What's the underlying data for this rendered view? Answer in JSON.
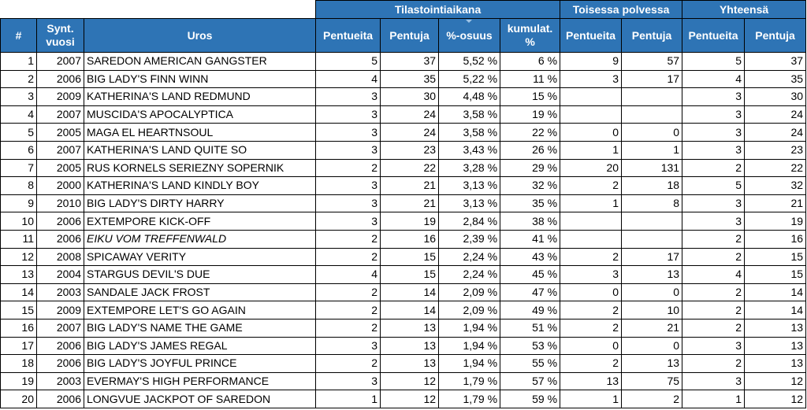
{
  "group_headers": {
    "stat": "Tilastointiaikana",
    "second": "Toisessa polvessa",
    "total": "Yhteensä"
  },
  "columns": {
    "rank": "#",
    "year_line1": "Synt.",
    "year_line2": "vuosi",
    "sire": "Uros",
    "litters": "Pentueita",
    "pups": "Pentuja",
    "share": "%-osuus",
    "cum_line1": "kumulat.",
    "cum_line2": "%",
    "second_litters": "Pentueita",
    "second_pups": "Pentuja",
    "total_litters": "Pentueita",
    "total_pups": "Pentuja"
  },
  "rows": [
    {
      "rank": "1",
      "year": "2007",
      "name": "SAREDON AMERICAN GANGSTER",
      "litters": "5",
      "pups": "37",
      "share": "5,52 %",
      "cum": "6 %",
      "s_litters": "9",
      "s_pups": "57",
      "t_litters": "5",
      "t_pups": "37"
    },
    {
      "rank": "2",
      "year": "2006",
      "name": "BIG LADY'S FINN WINN",
      "litters": "4",
      "pups": "35",
      "share": "5,22 %",
      "cum": "11 %",
      "s_litters": "3",
      "s_pups": "17",
      "t_litters": "4",
      "t_pups": "35"
    },
    {
      "rank": "3",
      "year": "2009",
      "name": "KATHERINA'S LAND REDMUND",
      "litters": "3",
      "pups": "30",
      "share": "4,48 %",
      "cum": "15 %",
      "s_litters": "",
      "s_pups": "",
      "t_litters": "3",
      "t_pups": "30"
    },
    {
      "rank": "4",
      "year": "2007",
      "name": "MUSCIDA'S APOCALYPTICA",
      "litters": "3",
      "pups": "24",
      "share": "3,58 %",
      "cum": "19 %",
      "s_litters": "",
      "s_pups": "",
      "t_litters": "3",
      "t_pups": "24"
    },
    {
      "rank": "5",
      "year": "2005",
      "name": "MAGA EL HEARTNSOUL",
      "litters": "3",
      "pups": "24",
      "share": "3,58 %",
      "cum": "22 %",
      "s_litters": "0",
      "s_pups": "0",
      "t_litters": "3",
      "t_pups": "24"
    },
    {
      "rank": "6",
      "year": "2007",
      "name": "KATHERINA'S LAND QUITE SO",
      "litters": "3",
      "pups": "23",
      "share": "3,43 %",
      "cum": "26 %",
      "s_litters": "1",
      "s_pups": "1",
      "t_litters": "3",
      "t_pups": "23"
    },
    {
      "rank": "7",
      "year": "2005",
      "name": "RUS KORNELS SERIEZNY SOPERNIK",
      "litters": "2",
      "pups": "22",
      "share": "3,28 %",
      "cum": "29 %",
      "s_litters": "20",
      "s_pups": "131",
      "t_litters": "2",
      "t_pups": "22"
    },
    {
      "rank": "8",
      "year": "2000",
      "name": "KATHERINA'S LAND KINDLY BOY",
      "litters": "3",
      "pups": "21",
      "share": "3,13 %",
      "cum": "32 %",
      "s_litters": "2",
      "s_pups": "18",
      "t_litters": "5",
      "t_pups": "32"
    },
    {
      "rank": "9",
      "year": "2010",
      "name": "BIG LADY'S DIRTY HARRY",
      "litters": "3",
      "pups": "21",
      "share": "3,13 %",
      "cum": "35 %",
      "s_litters": "1",
      "s_pups": "8",
      "t_litters": "3",
      "t_pups": "21"
    },
    {
      "rank": "10",
      "year": "2006",
      "name": "EXTEMPORE KICK-OFF",
      "litters": "3",
      "pups": "19",
      "share": "2,84 %",
      "cum": "38 %",
      "s_litters": "",
      "s_pups": "",
      "t_litters": "3",
      "t_pups": "19"
    },
    {
      "rank": "11",
      "year": "2006",
      "name": "EIKU VOM TREFFENWALD",
      "italic": true,
      "litters": "2",
      "pups": "16",
      "share": "2,39 %",
      "cum": "41 %",
      "s_litters": "",
      "s_pups": "",
      "t_litters": "2",
      "t_pups": "16"
    },
    {
      "rank": "12",
      "year": "2008",
      "name": "SPICAWAY VERITY",
      "litters": "2",
      "pups": "15",
      "share": "2,24 %",
      "cum": "43 %",
      "s_litters": "2",
      "s_pups": "17",
      "t_litters": "2",
      "t_pups": "15"
    },
    {
      "rank": "13",
      "year": "2004",
      "name": "STARGUS DEVIL'S DUE",
      "litters": "4",
      "pups": "15",
      "share": "2,24 %",
      "cum": "45 %",
      "s_litters": "3",
      "s_pups": "13",
      "t_litters": "4",
      "t_pups": "15"
    },
    {
      "rank": "14",
      "year": "2003",
      "name": "SANDALE JACK FROST",
      "litters": "2",
      "pups": "14",
      "share": "2,09 %",
      "cum": "47 %",
      "s_litters": "0",
      "s_pups": "0",
      "t_litters": "2",
      "t_pups": "14"
    },
    {
      "rank": "15",
      "year": "2009",
      "name": "EXTEMPORE LET'S GO AGAIN",
      "litters": "2",
      "pups": "14",
      "share": "2,09 %",
      "cum": "49 %",
      "s_litters": "2",
      "s_pups": "10",
      "t_litters": "2",
      "t_pups": "14"
    },
    {
      "rank": "16",
      "year": "2007",
      "name": "BIG LADY'S NAME THE GAME",
      "litters": "2",
      "pups": "13",
      "share": "1,94 %",
      "cum": "51 %",
      "s_litters": "2",
      "s_pups": "21",
      "t_litters": "2",
      "t_pups": "13"
    },
    {
      "rank": "17",
      "year": "2006",
      "name": "BIG LADY'S JAMES REGAL",
      "litters": "3",
      "pups": "13",
      "share": "1,94 %",
      "cum": "53 %",
      "s_litters": "0",
      "s_pups": "0",
      "t_litters": "3",
      "t_pups": "13"
    },
    {
      "rank": "18",
      "year": "2006",
      "name": "BIG LADY'S JOYFUL PRINCE",
      "litters": "2",
      "pups": "13",
      "share": "1,94 %",
      "cum": "55 %",
      "s_litters": "2",
      "s_pups": "13",
      "t_litters": "2",
      "t_pups": "13"
    },
    {
      "rank": "19",
      "year": "2003",
      "name": "EVERMAY'S HIGH PERFORMANCE",
      "litters": "3",
      "pups": "12",
      "share": "1,79 %",
      "cum": "57 %",
      "s_litters": "13",
      "s_pups": "75",
      "t_litters": "3",
      "t_pups": "12"
    },
    {
      "rank": "20",
      "year": "2006",
      "name": "LONGVUE JACKPOT OF SAREDON",
      "litters": "1",
      "pups": "12",
      "share": "1,79 %",
      "cum": "59 %",
      "s_litters": "1",
      "s_pups": "2",
      "t_litters": "1",
      "t_pups": "12"
    }
  ]
}
